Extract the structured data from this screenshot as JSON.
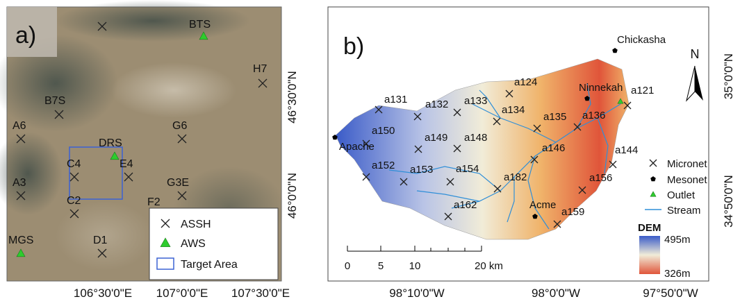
{
  "panel_a": {
    "label": "a)",
    "stations": [
      "BTS",
      "H7",
      "B7S",
      "A6",
      "G6",
      "DRS",
      "C4",
      "E4",
      "A3",
      "G3E",
      "F2",
      "C2",
      "MGS",
      "D1"
    ],
    "legend": [
      "ASSH",
      "AWS",
      "Target Area"
    ],
    "lon_labels": [
      "106°30'0\"E",
      "107°0'0\"E",
      "107°30'0\"E"
    ],
    "lat_labels": [
      "46°30'0\"N",
      "46°0'0\"N"
    ]
  },
  "panel_b": {
    "label": "b)",
    "micronet": [
      "a131",
      "a132",
      "a133",
      "a124",
      "a134",
      "a135",
      "a136",
      "a121",
      "a150",
      "a149",
      "a148",
      "a146",
      "a144",
      "a152",
      "a153",
      "a154",
      "a182",
      "a156",
      "a162",
      "a159"
    ],
    "mesonet": [
      "Chickasha",
      "Ninnekah",
      "Apache",
      "Acme"
    ],
    "legend": [
      "Micronet",
      "Mesonet",
      "Outlet",
      "Stream"
    ],
    "scale_labels": [
      "0",
      "5",
      "10",
      "20 km"
    ],
    "dem": {
      "title": "DEM",
      "max": "495m",
      "min": "326m"
    },
    "north": "N",
    "lon_labels": [
      "98°10'0\"W",
      "98°0'0\"W",
      "97°50'0\"W"
    ],
    "lat_labels": [
      "35°0'0\"N",
      "34°50'0\"N"
    ]
  }
}
